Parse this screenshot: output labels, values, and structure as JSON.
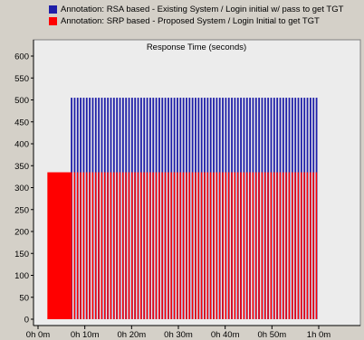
{
  "chart_data": {
    "type": "bar",
    "title": "Response Time (seconds)",
    "xlabel": "",
    "ylabel": "",
    "ylim": [
      0,
      600
    ],
    "y_ticks": [
      0,
      50,
      100,
      150,
      200,
      250,
      300,
      350,
      400,
      450,
      500,
      550,
      600
    ],
    "x_range_minutes": [
      0,
      63
    ],
    "x_ticks": [
      {
        "minute": 0,
        "label": "0h 0m"
      },
      {
        "minute": 10,
        "label": "0h 10m"
      },
      {
        "minute": 20,
        "label": "0h 20m"
      },
      {
        "minute": 30,
        "label": "0h 30m"
      },
      {
        "minute": 40,
        "label": "0h 40m"
      },
      {
        "minute": 50,
        "label": "0h 50m"
      },
      {
        "minute": 60,
        "label": "1h 0m"
      }
    ],
    "grid": false,
    "legend_position": "top",
    "series": [
      {
        "name": "Annotation:  RSA based - Existing System / Login initial w/ pass to get TGT",
        "color": "#1f1fa8",
        "style": "dense-vertical-bars",
        "x_start_minute": 7,
        "x_end_minute": 60,
        "bar_count": 82,
        "value": 505
      },
      {
        "name": "Annotation:  SRP based - Proposed System / Login Initial to get TGT",
        "color": "#ff0000",
        "style": "dense-vertical-bars",
        "x_start_minute": 2,
        "x_end_minute": 60,
        "bar_count": 90,
        "value": 335
      }
    ]
  },
  "colors": {
    "plot_background": "#ececec",
    "window_background": "#d4d0c8"
  }
}
